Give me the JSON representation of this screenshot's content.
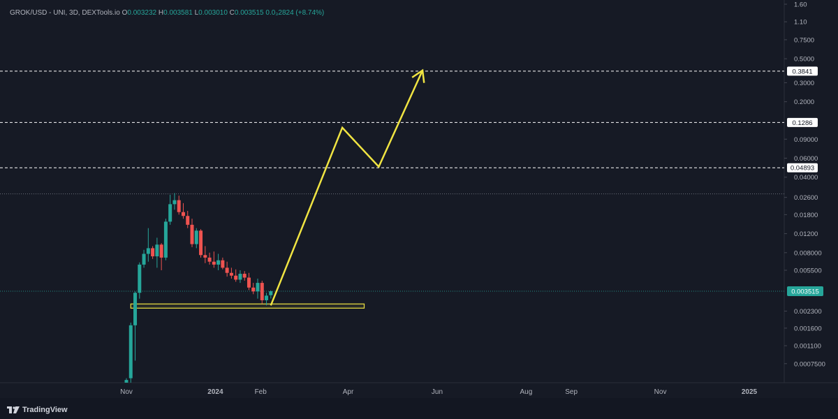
{
  "header": {
    "symbol": "GROK/USD - UNI, 3D, DEXTools.io",
    "o_label": "O",
    "o_value": "0.003232",
    "h_label": "H",
    "h_value": "0.003581",
    "l_label": "L",
    "l_value": "0.003010",
    "c_label": "C",
    "c_value": "0.003515",
    "change": "0.0₃2824 (+8.74%)"
  },
  "footer": {
    "brand": "TradingView"
  },
  "colors": {
    "background": "#161a25",
    "up": "#26a69a",
    "down": "#ef5350",
    "drawing": "#f0e442",
    "axis_text": "#b2b5be"
  },
  "chart_data": {
    "type": "candlestick",
    "yscale": "log",
    "ylim": [
      0.0005,
      1.75
    ],
    "y_ticks": [
      "1.60",
      "1.10",
      "0.7500",
      "0.5000",
      "0.3000",
      "0.2000",
      "0.09000",
      "0.06000",
      "0.04000",
      "0.02600",
      "0.01800",
      "0.01200",
      "0.008000",
      "0.005500",
      "0.002300",
      "0.001600",
      "0.001100",
      "0.0007500"
    ],
    "x_ticks": [
      {
        "date": "2023-11-01",
        "label": "Nov"
      },
      {
        "date": "2024-01-01",
        "label": "2024"
      },
      {
        "date": "2024-02-01",
        "label": "Feb"
      },
      {
        "date": "2024-04-01",
        "label": "Apr"
      },
      {
        "date": "2024-06-01",
        "label": "Jun"
      },
      {
        "date": "2024-08-01",
        "label": "Aug"
      },
      {
        "date": "2024-09-01",
        "label": "Sep"
      },
      {
        "date": "2024-11-01",
        "label": "Nov"
      },
      {
        "date": "2025-01-01",
        "label": "2025"
      }
    ],
    "candles": [
      {
        "date": "2023-11-01",
        "o": 0.0005,
        "h": 0.00055,
        "l": 0.0005,
        "c": 0.00053
      },
      {
        "date": "2023-11-04",
        "o": 0.00055,
        "h": 0.0018,
        "l": 0.0005,
        "c": 0.0017
      },
      {
        "date": "2023-11-07",
        "o": 0.0017,
        "h": 0.0035,
        "l": 0.0008,
        "c": 0.0034
      },
      {
        "date": "2023-11-10",
        "o": 0.0034,
        "h": 0.0065,
        "l": 0.003,
        "c": 0.0062
      },
      {
        "date": "2023-11-13",
        "o": 0.0062,
        "h": 0.0085,
        "l": 0.0058,
        "c": 0.0078
      },
      {
        "date": "2023-11-16",
        "o": 0.0078,
        "h": 0.0135,
        "l": 0.0066,
        "c": 0.0088
      },
      {
        "date": "2023-11-19",
        "o": 0.0088,
        "h": 0.0092,
        "l": 0.007,
        "c": 0.0074
      },
      {
        "date": "2023-11-22",
        "o": 0.0074,
        "h": 0.011,
        "l": 0.0058,
        "c": 0.0095
      },
      {
        "date": "2023-11-25",
        "o": 0.0095,
        "h": 0.0098,
        "l": 0.0055,
        "c": 0.0072
      },
      {
        "date": "2023-11-28",
        "o": 0.0072,
        "h": 0.0165,
        "l": 0.0068,
        "c": 0.0155
      },
      {
        "date": "2023-12-01",
        "o": 0.0155,
        "h": 0.0275,
        "l": 0.0145,
        "c": 0.0225
      },
      {
        "date": "2023-12-04",
        "o": 0.0225,
        "h": 0.0285,
        "l": 0.02,
        "c": 0.0245
      },
      {
        "date": "2023-12-07",
        "o": 0.0245,
        "h": 0.027,
        "l": 0.018,
        "c": 0.019
      },
      {
        "date": "2023-12-10",
        "o": 0.019,
        "h": 0.023,
        "l": 0.0165,
        "c": 0.0175
      },
      {
        "date": "2023-12-13",
        "o": 0.0175,
        "h": 0.0195,
        "l": 0.0135,
        "c": 0.0145
      },
      {
        "date": "2023-12-16",
        "o": 0.0145,
        "h": 0.0165,
        "l": 0.009,
        "c": 0.0096
      },
      {
        "date": "2023-12-19",
        "o": 0.0096,
        "h": 0.0135,
        "l": 0.0088,
        "c": 0.0128
      },
      {
        "date": "2023-12-22",
        "o": 0.0128,
        "h": 0.0132,
        "l": 0.0072,
        "c": 0.0076
      },
      {
        "date": "2023-12-25",
        "o": 0.0076,
        "h": 0.0092,
        "l": 0.0064,
        "c": 0.0072
      },
      {
        "date": "2023-12-28",
        "o": 0.0072,
        "h": 0.008,
        "l": 0.0062,
        "c": 0.0066
      },
      {
        "date": "2023-12-31",
        "o": 0.0066,
        "h": 0.0082,
        "l": 0.0058,
        "c": 0.0062
      },
      {
        "date": "2024-01-03",
        "o": 0.0062,
        "h": 0.0078,
        "l": 0.0055,
        "c": 0.0068
      },
      {
        "date": "2024-01-06",
        "o": 0.0068,
        "h": 0.0072,
        "l": 0.0056,
        "c": 0.0058
      },
      {
        "date": "2024-01-09",
        "o": 0.0058,
        "h": 0.0066,
        "l": 0.0048,
        "c": 0.0052
      },
      {
        "date": "2024-01-12",
        "o": 0.0052,
        "h": 0.0058,
        "l": 0.0046,
        "c": 0.0049
      },
      {
        "date": "2024-01-15",
        "o": 0.0049,
        "h": 0.0056,
        "l": 0.0043,
        "c": 0.0045
      },
      {
        "date": "2024-01-18",
        "o": 0.0045,
        "h": 0.0055,
        "l": 0.0042,
        "c": 0.0051
      },
      {
        "date": "2024-01-21",
        "o": 0.0051,
        "h": 0.0054,
        "l": 0.0044,
        "c": 0.0047
      },
      {
        "date": "2024-01-24",
        "o": 0.0047,
        "h": 0.0052,
        "l": 0.0036,
        "c": 0.0038
      },
      {
        "date": "2024-01-27",
        "o": 0.0038,
        "h": 0.0042,
        "l": 0.0033,
        "c": 0.0035
      },
      {
        "date": "2024-01-30",
        "o": 0.0035,
        "h": 0.0046,
        "l": 0.003,
        "c": 0.0042
      },
      {
        "date": "2024-02-02",
        "o": 0.0042,
        "h": 0.0044,
        "l": 0.0027,
        "c": 0.0029
      },
      {
        "date": "2024-02-05",
        "o": 0.0029,
        "h": 0.0034,
        "l": 0.0026,
        "c": 0.0032
      },
      {
        "date": "2024-02-08",
        "o": 0.003232,
        "h": 0.003581,
        "l": 0.00301,
        "c": 0.003515
      }
    ],
    "price_levels": [
      {
        "value": 0.3841,
        "label": "0.3841",
        "style": "dashed"
      },
      {
        "value": 0.1286,
        "label": "0.1286",
        "style": "dashed"
      },
      {
        "value": 0.04893,
        "label": "0.04893",
        "style": "dashed"
      },
      {
        "value": 0.028,
        "label": "",
        "style": "dotted"
      }
    ],
    "last_price": {
      "value": 0.003515,
      "label": "0.003515"
    },
    "support_zone": {
      "x_from": "2023-11-04",
      "x_to": "2024-04-12",
      "y_from": 0.00245,
      "y_to": 0.00268
    },
    "projection_path": [
      {
        "date": "2024-02-08",
        "y": 0.0026
      },
      {
        "date": "2024-03-28",
        "y": 0.115
      },
      {
        "date": "2024-04-22",
        "y": 0.05
      },
      {
        "date": "2024-05-22",
        "y": 0.39
      }
    ]
  }
}
